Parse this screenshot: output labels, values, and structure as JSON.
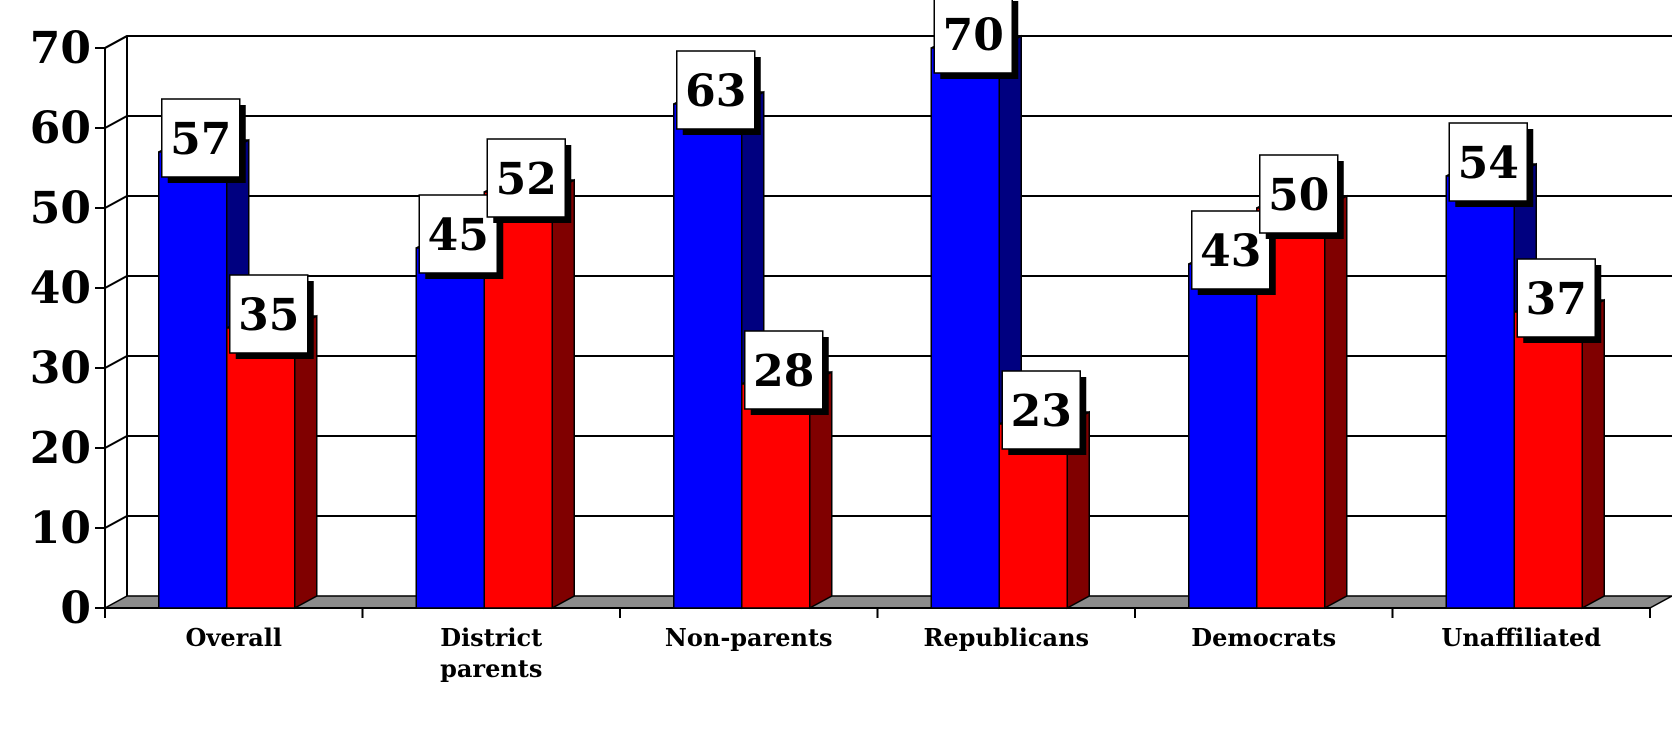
{
  "chart_data": {
    "type": "bar",
    "title": "",
    "xlabel": "",
    "ylabel": "",
    "ylim": [
      0,
      70
    ],
    "yticks": [
      0,
      10,
      20,
      30,
      40,
      50,
      60,
      70
    ],
    "grid": true,
    "legend": "none",
    "categories": [
      [
        "Overall"
      ],
      [
        "District",
        "parents"
      ],
      [
        "Non-parents"
      ],
      [
        "Republicans"
      ],
      [
        "Democrats"
      ],
      [
        "Unaffiliated"
      ]
    ],
    "series": [
      {
        "values": [
          57,
          45,
          63,
          70,
          43,
          54
        ],
        "color": "#0000ff",
        "side_color": "#000080"
      },
      {
        "values": [
          35,
          52,
          28,
          23,
          50,
          37
        ],
        "color": "#ff0000",
        "side_color": "#800000"
      }
    ]
  }
}
